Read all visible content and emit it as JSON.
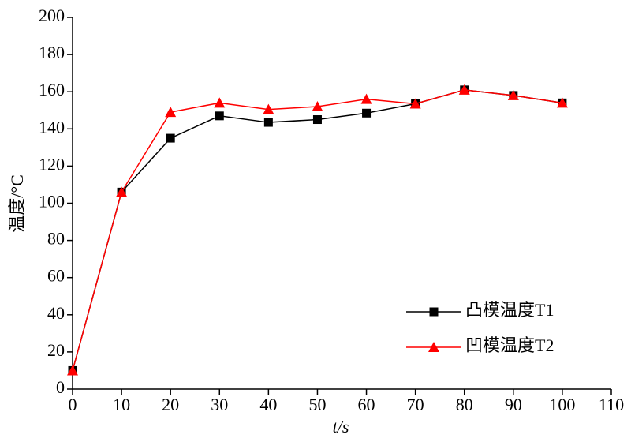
{
  "chart_data": {
    "type": "line",
    "x_label": "t/s",
    "y_label": "温度/°C",
    "x": [
      0,
      10,
      20,
      30,
      40,
      50,
      60,
      70,
      80,
      90,
      100
    ],
    "xlim": [
      0,
      110
    ],
    "xticks": [
      0,
      10,
      20,
      30,
      40,
      50,
      60,
      70,
      80,
      90,
      100,
      110
    ],
    "ylim": [
      0,
      200
    ],
    "yticks": [
      0,
      20,
      40,
      60,
      80,
      100,
      120,
      140,
      160,
      180,
      200
    ],
    "grid": false,
    "legend": "lower right",
    "series": [
      {
        "name": "凸模温度T1",
        "color": "#000000",
        "marker": "square",
        "values": [
          10,
          106,
          135,
          147,
          143.5,
          145,
          148.5,
          153.5,
          161,
          158,
          154
        ]
      },
      {
        "name": "凹模温度T2",
        "color": "#ff0000",
        "marker": "triangle",
        "values": [
          10,
          106,
          149,
          154,
          150.5,
          152,
          156,
          153.5,
          161,
          158,
          154
        ]
      }
    ]
  }
}
